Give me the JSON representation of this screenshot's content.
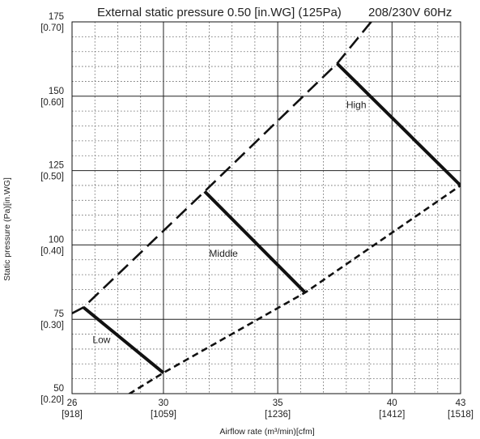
{
  "chart_data": {
    "type": "line",
    "title": "External static pressure 0.50 [in.WG] (125Pa)",
    "subtitle": "208/230V 60Hz",
    "xlabel": "Airflow rate (m³/min)[cfm]",
    "ylabel": "Static pressure (Pa)[in.WG]",
    "xlim": [
      26,
      43
    ],
    "ylim": [
      50,
      175
    ],
    "grid": true,
    "x_ticks": [
      {
        "value": 26,
        "label": "26",
        "sublabel": "[918]"
      },
      {
        "value": 30,
        "label": "30",
        "sublabel": "[1059]"
      },
      {
        "value": 35,
        "label": "35",
        "sublabel": "[1236]"
      },
      {
        "value": 40,
        "label": "40",
        "sublabel": "[1412]"
      },
      {
        "value": 43,
        "label": "43",
        "sublabel": "[1518]"
      }
    ],
    "y_ticks": [
      {
        "value": 50,
        "label": "50",
        "sublabel": "[0.20]"
      },
      {
        "value": 75,
        "label": "75",
        "sublabel": "[0.30]"
      },
      {
        "value": 100,
        "label": "100",
        "sublabel": "[0.40]"
      },
      {
        "value": 125,
        "label": "125",
        "sublabel": "[0.50]"
      },
      {
        "value": 150,
        "label": "150",
        "sublabel": "[0.60]"
      },
      {
        "value": 175,
        "label": "175",
        "sublabel": "[0.70]"
      }
    ],
    "series": [
      {
        "name": "Low",
        "style": "solid",
        "points": [
          [
            26.5,
            79
          ],
          [
            30.0,
            57
          ]
        ],
        "label_at": [
          26.9,
          67
        ]
      },
      {
        "name": "Middle",
        "style": "solid",
        "points": [
          [
            31.8,
            118
          ],
          [
            36.2,
            84
          ]
        ],
        "label_at": [
          32.0,
          96
        ]
      },
      {
        "name": "High",
        "style": "solid",
        "points": [
          [
            37.6,
            161
          ],
          [
            43.0,
            120
          ]
        ],
        "label_at": [
          38.0,
          146
        ]
      },
      {
        "style": "long-dash",
        "points": [
          [
            26.0,
            77
          ],
          [
            26.5,
            79
          ],
          [
            31.8,
            118
          ],
          [
            37.6,
            161
          ],
          [
            39.3,
            177
          ]
        ]
      },
      {
        "style": "short-dash",
        "points": [
          [
            28.1,
            48
          ],
          [
            30.0,
            57
          ],
          [
            36.2,
            84
          ],
          [
            43.0,
            120
          ]
        ]
      }
    ],
    "colors": {
      "line": "#111111",
      "grid": "#555555",
      "background": "#ffffff"
    }
  }
}
